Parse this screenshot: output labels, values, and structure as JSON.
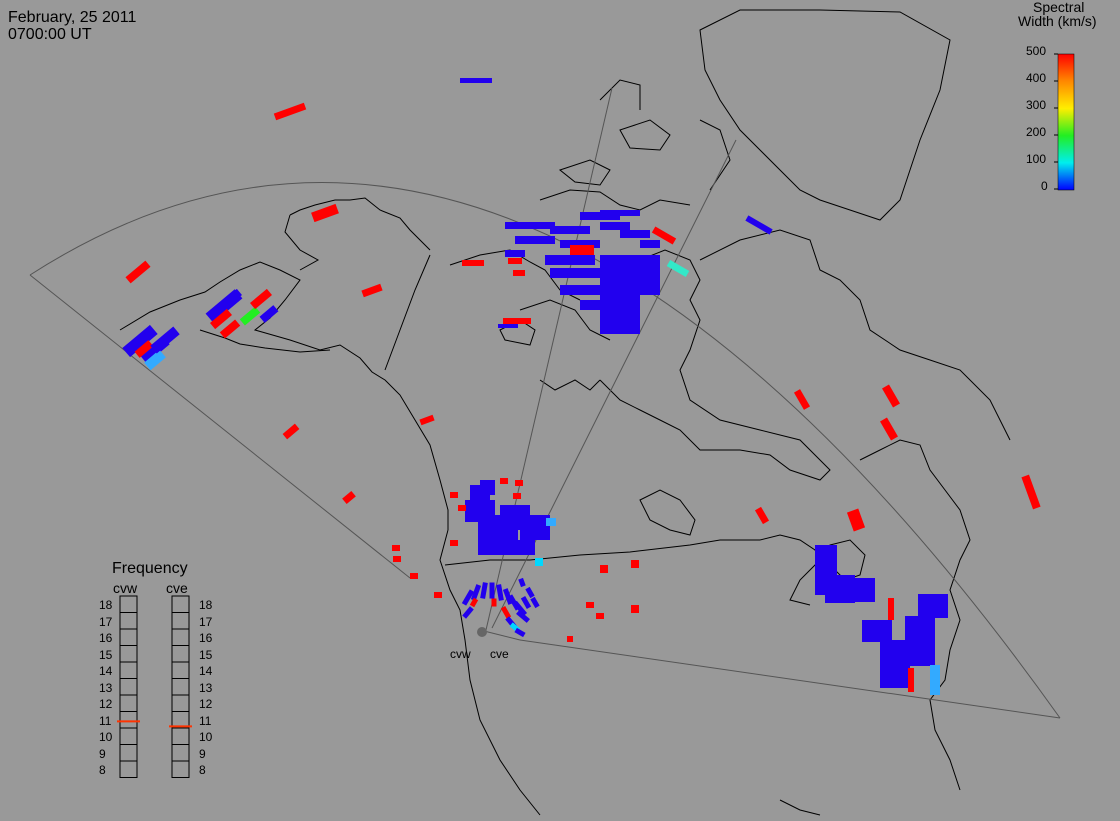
{
  "header": {
    "date": "February, 25 2011",
    "time": "0700:00 UT"
  },
  "colorbar": {
    "title_line1": "Spectral",
    "title_line2": "Width (km/s)",
    "ticks": [
      "500",
      "400",
      "300",
      "200",
      "100",
      "0"
    ],
    "gradient": [
      "#ff0000",
      "#ff8800",
      "#ffee00",
      "#22ee22",
      "#00eeee",
      "#0000ff"
    ]
  },
  "radars": {
    "west": "cvw",
    "east": "cve"
  },
  "frequency": {
    "title": "Frequency",
    "left_label": "cvw",
    "right_label": "cve",
    "scale": [
      "18",
      "17",
      "16",
      "15",
      "14",
      "13",
      "12",
      "11",
      "10",
      "9",
      "8"
    ],
    "cvw_value_mhz": 10.9,
    "cve_value_mhz": 10.6,
    "marker_color": "#ff3300"
  },
  "colors": {
    "background": "#999999",
    "coast": "#000000",
    "fov": "#555555",
    "red": "#ff0000",
    "blue": "#2200ee",
    "cyan": "#00d8ff",
    "teal": "#33e8c8",
    "lightblue": "#33aaff",
    "green": "#22ee22"
  }
}
